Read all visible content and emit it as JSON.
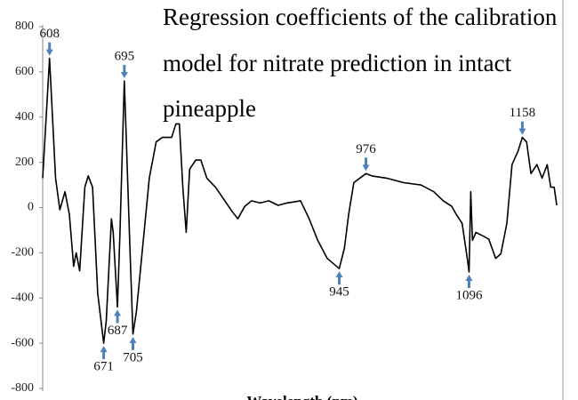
{
  "chart_data": {
    "type": "line",
    "title_lines": [
      "Regression coefficients of the calibration",
      "model for nitrate prediction in intact",
      "pineapple"
    ],
    "x_label": "Wavelength (nm)",
    "xlim": [
      600,
      1200
    ],
    "ylim": [
      -800,
      800
    ],
    "yticks": [
      -800,
      -600,
      -400,
      -200,
      0,
      200,
      400,
      600,
      800
    ],
    "color": "#000000",
    "annotation_color": "#4f81bd",
    "x": [
      600,
      608,
      615,
      620,
      626,
      631,
      636,
      639,
      643,
      649,
      653,
      658,
      664,
      671,
      674,
      680,
      682,
      687,
      690,
      695,
      697,
      701,
      705,
      709,
      719,
      724,
      732,
      739,
      750,
      755,
      759,
      763,
      767,
      771,
      778,
      784,
      791,
      801,
      812,
      819,
      827,
      835,
      843,
      853,
      863,
      874,
      884,
      900,
      910,
      920,
      931,
      945,
      951,
      956,
      962,
      976,
      983,
      1000,
      1020,
      1040,
      1055,
      1066,
      1076,
      1081,
      1088,
      1094,
      1096,
      1098,
      1100,
      1104,
      1112,
      1119,
      1127,
      1133,
      1140,
      1146,
      1153,
      1158,
      1163,
      1168,
      1175,
      1181,
      1187,
      1191,
      1195,
      1198
    ],
    "values": [
      130,
      660,
      130,
      -10,
      70,
      -30,
      -260,
      -200,
      -280,
      90,
      140,
      90,
      -380,
      -600,
      -500,
      -50,
      -110,
      -440,
      -100,
      560,
      330,
      -120,
      -560,
      -460,
      -70,
      130,
      290,
      310,
      310,
      370,
      370,
      90,
      -110,
      170,
      210,
      210,
      130,
      90,
      30,
      -10,
      -50,
      5,
      30,
      20,
      30,
      10,
      20,
      30,
      -50,
      -145,
      -225,
      -270,
      -180,
      -30,
      110,
      150,
      140,
      130,
      110,
      100,
      70,
      30,
      5,
      -30,
      -70,
      -225,
      -285,
      70,
      -145,
      -110,
      -125,
      -140,
      -225,
      -205,
      -70,
      190,
      250,
      310,
      290,
      150,
      190,
      130,
      190,
      90,
      90,
      10
    ],
    "annotations": [
      608,
      671,
      687,
      695,
      705,
      945,
      976,
      1096,
      1158
    ]
  }
}
